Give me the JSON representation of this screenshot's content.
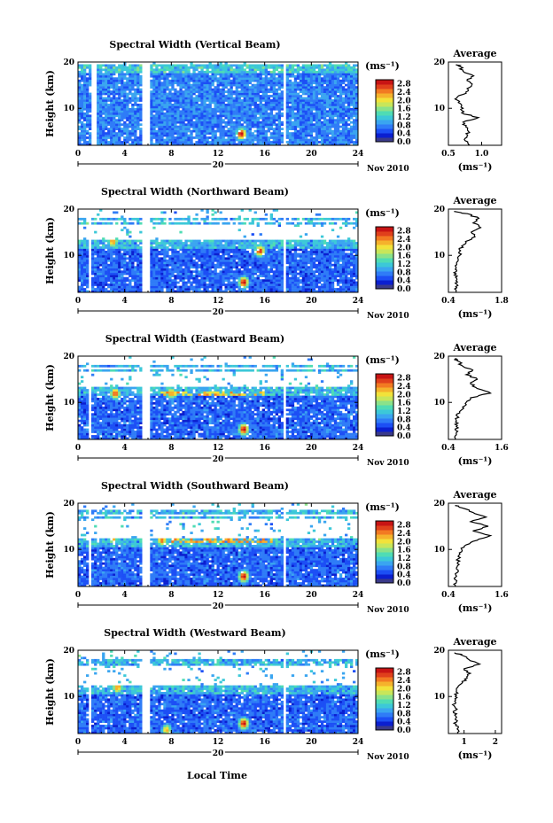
{
  "figure": {
    "xlabel": "Local Time",
    "date_label": "Nov 2010",
    "day_label": "20",
    "height_axis_label": "Height (km)",
    "unit_label": "(ms⁻¹)",
    "colors": [
      "#3a3a8a",
      "#0b1fd0",
      "#1c4ff5",
      "#2f7cf7",
      "#3aa5f0",
      "#3cc8d8",
      "#4fdcb4",
      "#8ae28a",
      "#c8e65a",
      "#f2e23a",
      "#f5b22c",
      "#f27a22",
      "#e0401c",
      "#c81414"
    ]
  },
  "chart_data": [
    {
      "type": "heatmap",
      "title": "Spectral Width (Vertical Beam)",
      "xlabel": "Local Time",
      "ylabel": "Height (km)",
      "xlim": [
        0,
        24
      ],
      "ylim": [
        2,
        20
      ],
      "xticks": [
        0,
        4,
        8,
        12,
        16,
        20,
        24
      ],
      "yticks": [
        10,
        20
      ],
      "colorbar": {
        "label": "(ms⁻¹)",
        "ticks": [
          "2.8",
          "2.4",
          "2.0",
          "1.6",
          "1.2",
          "0.8",
          "0.4",
          "0.0"
        ],
        "range": [
          0,
          3
        ]
      },
      "top_km": 19.5,
      "top_rows": [],
      "gaps": [
        [
          1.2,
          1.6
        ],
        [
          5.5,
          6.2
        ],
        [
          17.6,
          17.9
        ]
      ],
      "hotspots": [
        {
          "x": 14.0,
          "y": 4.5,
          "v": 3.0
        }
      ],
      "hilayer": null,
      "bg": 0.6,
      "avg_profile": {
        "title": "Average",
        "xlabel": "(ms⁻¹)",
        "xlim": [
          0.5,
          1.3
        ],
        "xticks": [
          "0.5",
          "1.0"
        ],
        "height": [
          2,
          3,
          4,
          5,
          6,
          7,
          8,
          9,
          10,
          11,
          12,
          13,
          14,
          15,
          16,
          17,
          18,
          19,
          19.5
        ],
        "value": [
          0.82,
          0.75,
          0.78,
          0.8,
          0.76,
          0.72,
          0.95,
          0.7,
          0.72,
          0.68,
          0.6,
          0.72,
          0.8,
          0.85,
          0.78,
          0.88,
          0.72,
          0.68,
          0.62
        ]
      }
    },
    {
      "type": "heatmap",
      "title": "Spectral Width (Northward Beam)",
      "xlabel": "Local Time",
      "ylabel": "Height (km)",
      "xlim": [
        0,
        24
      ],
      "ylim": [
        2,
        20
      ],
      "xticks": [
        0,
        4,
        8,
        12,
        16,
        20,
        24
      ],
      "yticks": [
        10,
        20
      ],
      "colorbar": {
        "label": "(ms⁻¹)",
        "ticks": [
          "2.8",
          "2.4",
          "2.0",
          "1.6",
          "1.2",
          "0.8",
          "0.4",
          "0.0"
        ],
        "range": [
          0,
          3
        ]
      },
      "top_km": 13.5,
      "top_rows": [
        17.0,
        17.8
      ],
      "gaps": [
        [
          1.0,
          1.2
        ],
        [
          5.5,
          6.2
        ],
        [
          17.5,
          17.8
        ]
      ],
      "hotspots": [
        {
          "x": 14.2,
          "y": 4.2,
          "v": 3.0
        },
        {
          "x": 15.6,
          "y": 11.0,
          "v": 2.8
        },
        {
          "x": 3.0,
          "y": 13.0,
          "v": 2.4
        }
      ],
      "hilayer": null,
      "bg": 0.45,
      "avg_profile": {
        "title": "Average",
        "xlabel": "(ms⁻¹)",
        "xlim": [
          0.4,
          1.8
        ],
        "xticks": [
          "0.4",
          "1.8"
        ],
        "height": [
          2,
          3,
          4,
          5,
          6,
          7,
          8,
          9,
          10,
          11,
          12,
          13,
          14,
          15,
          16,
          17,
          18,
          19,
          19.5
        ],
        "value": [
          0.6,
          0.62,
          0.58,
          0.62,
          0.6,
          0.58,
          0.62,
          0.66,
          0.7,
          0.72,
          0.75,
          0.85,
          1.1,
          1.0,
          1.25,
          1.05,
          1.2,
          0.9,
          0.55
        ]
      }
    },
    {
      "type": "heatmap",
      "title": "Spectral Width (Eastward Beam)",
      "xlabel": "Local Time",
      "ylabel": "Height (km)",
      "xlim": [
        0,
        24
      ],
      "ylim": [
        2,
        20
      ],
      "xticks": [
        0,
        4,
        8,
        12,
        16,
        20,
        24
      ],
      "yticks": [
        10,
        20
      ],
      "colorbar": {
        "label": "(ms⁻¹)",
        "ticks": [
          "2.8",
          "2.4",
          "2.0",
          "1.6",
          "1.2",
          "0.8",
          "0.4",
          "0.0"
        ],
        "range": [
          0,
          3
        ]
      },
      "top_km": 13.5,
      "top_rows": [
        17.0,
        17.8
      ],
      "gaps": [
        [
          1.0,
          1.2
        ],
        [
          5.5,
          6.2
        ],
        [
          17.5,
          17.8
        ]
      ],
      "hotspots": [
        {
          "x": 14.2,
          "y": 4.2,
          "v": 3.0
        },
        {
          "x": 3.2,
          "y": 12.0,
          "v": 2.6
        },
        {
          "x": 8.0,
          "y": 12.0,
          "v": 2.4
        }
      ],
      "hilayer": {
        "y": 12.0,
        "x0": 7.0,
        "x1": 16.0,
        "v": 2.2
      },
      "bg": 0.45,
      "avg_profile": {
        "title": "Average",
        "xlabel": "(ms⁻¹)",
        "xlim": [
          0.4,
          1.6
        ],
        "xticks": [
          "0.4",
          "1.6"
        ],
        "height": [
          2,
          3,
          4,
          5,
          6,
          7,
          8,
          9,
          10,
          11,
          12,
          13,
          14,
          15,
          16,
          17,
          18,
          19,
          19.5
        ],
        "value": [
          0.55,
          0.58,
          0.56,
          0.6,
          0.58,
          0.6,
          0.65,
          0.72,
          0.8,
          0.9,
          1.35,
          1.05,
          0.9,
          1.05,
          0.8,
          0.95,
          0.7,
          0.6,
          0.55
        ]
      }
    },
    {
      "type": "heatmap",
      "title": "Spectral Width (Southward Beam)",
      "xlabel": "Local Time",
      "ylabel": "Height (km)",
      "xlim": [
        0,
        24
      ],
      "ylim": [
        2,
        20
      ],
      "xticks": [
        0,
        4,
        8,
        12,
        16,
        20,
        24
      ],
      "yticks": [
        10,
        20
      ],
      "colorbar": {
        "label": "(ms⁻¹)",
        "ticks": [
          "2.8",
          "2.4",
          "2.0",
          "1.6",
          "1.2",
          "0.8",
          "0.4",
          "0.0"
        ],
        "range": [
          0,
          3
        ]
      },
      "top_km": 12.5,
      "top_rows": [
        17.0,
        18.0
      ],
      "gaps": [
        [
          1.0,
          1.2
        ],
        [
          5.5,
          6.2
        ],
        [
          17.5,
          17.8
        ]
      ],
      "hotspots": [
        {
          "x": 14.2,
          "y": 4.2,
          "v": 3.0
        },
        {
          "x": 7.2,
          "y": 12.0,
          "v": 2.5
        },
        {
          "x": 3.0,
          "y": 12.5,
          "v": 2.3
        }
      ],
      "hilayer": {
        "y": 12.0,
        "x0": 8.0,
        "x1": 17.0,
        "v": 2.3
      },
      "bg": 0.45,
      "avg_profile": {
        "title": "Average",
        "xlabel": "(ms⁻¹)",
        "xlim": [
          0.4,
          1.6
        ],
        "xticks": [
          "0.4",
          "1.6"
        ],
        "height": [
          2,
          3,
          4,
          5,
          6,
          7,
          8,
          9,
          10,
          11,
          12,
          13,
          14,
          15,
          16,
          17,
          18,
          19,
          19.5
        ],
        "value": [
          0.55,
          0.58,
          0.56,
          0.6,
          0.58,
          0.6,
          0.62,
          0.66,
          0.7,
          0.8,
          1.05,
          1.35,
          0.95,
          1.3,
          0.9,
          1.25,
          0.95,
          0.7,
          0.55
        ]
      }
    },
    {
      "type": "heatmap",
      "title": "Spectral Width (Westward Beam)",
      "xlabel": "Local Time",
      "ylabel": "Height (km)",
      "xlim": [
        0,
        24
      ],
      "ylim": [
        2,
        20
      ],
      "xticks": [
        0,
        4,
        8,
        12,
        16,
        20,
        24
      ],
      "yticks": [
        10,
        20
      ],
      "colorbar": {
        "label": "(ms⁻¹)",
        "ticks": [
          "2.8",
          "2.4",
          "2.0",
          "1.6",
          "1.2",
          "0.8",
          "0.4",
          "0.0"
        ],
        "range": [
          0,
          3
        ]
      },
      "top_km": 12.5,
      "top_rows": [
        17.0,
        17.6
      ],
      "gaps": [
        [
          1.0,
          1.2
        ],
        [
          5.5,
          6.2
        ],
        [
          17.5,
          17.8
        ]
      ],
      "hotspots": [
        {
          "x": 14.2,
          "y": 4.2,
          "v": 3.0
        },
        {
          "x": 3.4,
          "y": 12.0,
          "v": 2.4
        },
        {
          "x": 7.6,
          "y": 2.8,
          "v": 2.2
        }
      ],
      "hilayer": null,
      "bg": 0.45,
      "avg_profile": {
        "title": "Average",
        "xlabel": "(ms⁻¹)",
        "xlim": [
          0.5,
          2.2
        ],
        "xticks": [
          "1",
          "2"
        ],
        "height": [
          2,
          3,
          4,
          5,
          6,
          7,
          8,
          9,
          10,
          11,
          12,
          13,
          14,
          15,
          16,
          17,
          18,
          19,
          19.5
        ],
        "value": [
          0.8,
          0.78,
          0.75,
          0.72,
          0.7,
          0.72,
          0.68,
          0.7,
          0.72,
          0.75,
          0.8,
          0.95,
          1.1,
          1.2,
          1.0,
          1.5,
          1.15,
          0.9,
          0.7
        ]
      }
    }
  ]
}
